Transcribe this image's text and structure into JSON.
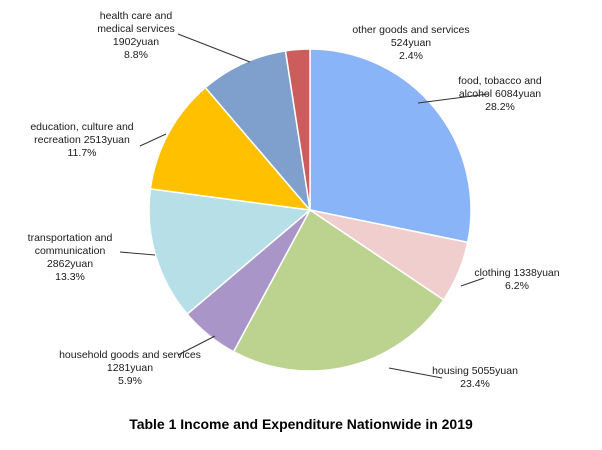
{
  "chart_data": {
    "type": "pie",
    "caption": "Table 1 Income and Expenditure Nationwide in 2019",
    "slices": [
      {
        "label_lines": [
          "food, tobacco and",
          "alcohol 6084yuan"
        ],
        "value": 6084,
        "percent_label": "28.2%",
        "color": "#8ab4f8"
      },
      {
        "label_lines": [
          "clothing 1338yuan"
        ],
        "value": 1338,
        "percent_label": "6.2%",
        "color": "#f0cece"
      },
      {
        "label_lines": [
          "housing 5055yuan"
        ],
        "value": 5055,
        "percent_label": "23.4%",
        "color": "#bcd28f"
      },
      {
        "label_lines": [
          "household goods and services",
          "1281yuan"
        ],
        "value": 1281,
        "percent_label": "5.9%",
        "color": "#a995c7"
      },
      {
        "label_lines": [
          "transportation and",
          "communication",
          "2862yuan"
        ],
        "value": 2862,
        "percent_label": "13.3%",
        "color": "#b7dfe8"
      },
      {
        "label_lines": [
          "education, culture and",
          "recreation 2513yuan"
        ],
        "value": 2513,
        "percent_label": "11.7%",
        "color": "#ffc000"
      },
      {
        "label_lines": [
          "health care and",
          "medical services",
          "1902yuan"
        ],
        "value": 1902,
        "percent_label": "8.8%",
        "color": "#7f9fcc"
      },
      {
        "label_lines": [
          "other goods and services",
          "524yuan"
        ],
        "value": 524,
        "percent_label": "2.4%",
        "color": "#cd5c5c"
      }
    ]
  }
}
